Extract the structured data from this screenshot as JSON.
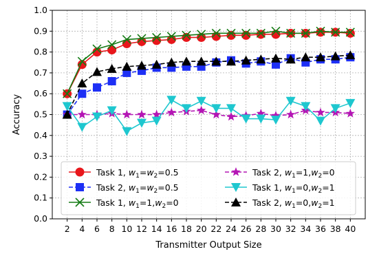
{
  "chart_data": {
    "type": "line",
    "title": "",
    "xlabel": "Transmitter Output Size",
    "ylabel": "Accuracy",
    "x": [
      2,
      4,
      6,
      8,
      10,
      12,
      14,
      16,
      18,
      20,
      22,
      24,
      26,
      28,
      30,
      32,
      34,
      36,
      38,
      40
    ],
    "xlim": [
      0,
      42
    ],
    "ylim": [
      0.0,
      1.0
    ],
    "yticks": [
      0.0,
      0.1,
      0.2,
      0.3,
      0.4,
      0.5,
      0.6,
      0.7,
      0.8,
      0.9,
      1.0
    ],
    "grid": true,
    "legend_position": "lower-center",
    "series": [
      {
        "name": "Task 1, w1=w2=0.5",
        "color": "#e8161b",
        "marker": "circle",
        "linestyle": "solid",
        "values": [
          0.6,
          0.74,
          0.8,
          0.81,
          0.84,
          0.85,
          0.855,
          0.86,
          0.87,
          0.87,
          0.875,
          0.88,
          0.88,
          0.885,
          0.885,
          0.89,
          0.89,
          0.895,
          0.895,
          0.89
        ]
      },
      {
        "name": "Task 2, w1=w2=0.5",
        "color": "#1d2ff5",
        "marker": "square",
        "linestyle": "dashed",
        "values": [
          0.5,
          0.6,
          0.63,
          0.66,
          0.7,
          0.71,
          0.725,
          0.725,
          0.73,
          0.73,
          0.75,
          0.76,
          0.745,
          0.755,
          0.74,
          0.77,
          0.75,
          0.765,
          0.765,
          0.775
        ]
      },
      {
        "name": "Task 1, w1=1,w2=0",
        "color": "#137a13",
        "marker": "x",
        "linestyle": "solid",
        "values": [
          0.6,
          0.755,
          0.815,
          0.835,
          0.86,
          0.865,
          0.87,
          0.875,
          0.88,
          0.885,
          0.89,
          0.89,
          0.89,
          0.89,
          0.9,
          0.89,
          0.89,
          0.9,
          0.895,
          0.895
        ]
      },
      {
        "name": "Task 2, w1=1,w2=0",
        "color": "#b415b4",
        "marker": "star",
        "linestyle": "dashed",
        "values": [
          0.5,
          0.5,
          0.5,
          0.505,
          0.5,
          0.5,
          0.5,
          0.51,
          0.515,
          0.52,
          0.5,
          0.49,
          0.495,
          0.505,
          0.495,
          0.5,
          0.52,
          0.51,
          0.51,
          0.505
        ]
      },
      {
        "name": "Task 1, w1=0,w2=1",
        "color": "#1ec7cf",
        "marker": "triangle-down",
        "linestyle": "solid",
        "values": [
          0.54,
          0.44,
          0.49,
          0.52,
          0.42,
          0.46,
          0.47,
          0.57,
          0.53,
          0.565,
          0.53,
          0.53,
          0.48,
          0.48,
          0.475,
          0.565,
          0.54,
          0.47,
          0.53,
          0.555
        ]
      },
      {
        "name": "Task 2, w1=0,w2=1",
        "color": "#000000",
        "marker": "triangle-up",
        "linestyle": "dashed",
        "values": [
          0.5,
          0.65,
          0.705,
          0.72,
          0.73,
          0.735,
          0.74,
          0.75,
          0.755,
          0.755,
          0.755,
          0.755,
          0.76,
          0.765,
          0.77,
          0.765,
          0.775,
          0.775,
          0.78,
          0.785
        ]
      }
    ],
    "legend_entries": [
      {
        "task": "Task 1, ",
        "w1": "1",
        "w2": "2",
        "tail": "=0.5",
        "mode": "eq",
        "a": "0.5"
      },
      {
        "task": "Task 2, ",
        "w1": "1",
        "w2": "2",
        "mode": "eq"
      },
      {
        "task": "Task 1, ",
        "mode": "pair"
      },
      {
        "task": "Task 2, ",
        "mode": "pair"
      },
      {
        "task": "Task 1, ",
        "mode": "pair"
      },
      {
        "task": "Task 2, ",
        "mode": "pair"
      }
    ]
  }
}
